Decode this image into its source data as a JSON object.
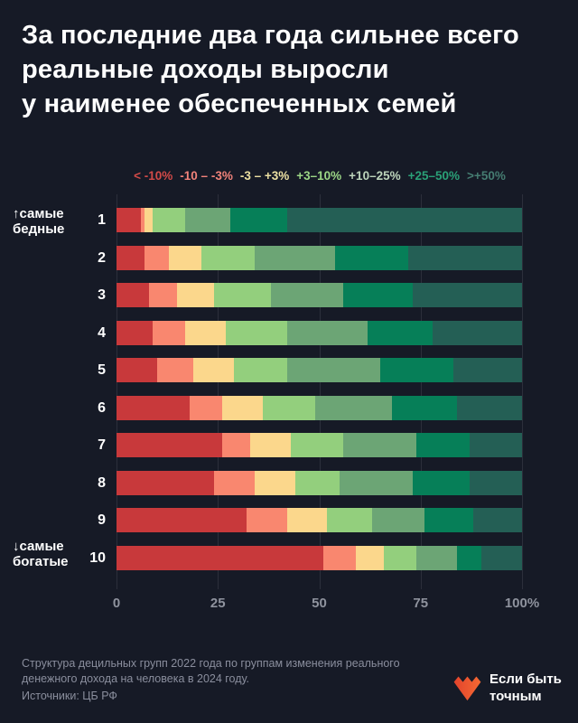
{
  "page": {
    "background": "#161a26"
  },
  "title": {
    "lines": [
      "За последние два года сильнее всего",
      "реальные доходы выросли",
      "у наименее обеспеченных семей"
    ]
  },
  "chart_data": {
    "type": "bar",
    "stacked": true,
    "orientation": "horizontal",
    "title": "За последние два года сильнее всего реальные доходы выросли у наименее обеспеченных семей",
    "categories": [
      "1",
      "2",
      "3",
      "4",
      "5",
      "6",
      "7",
      "8",
      "9",
      "10"
    ],
    "series": [
      {
        "name": "< -10%",
        "color": "#c8393b",
        "legend_text_color": "#d24a48",
        "values": [
          6,
          7,
          8,
          9,
          10,
          18,
          26,
          24,
          32,
          51
        ]
      },
      {
        "name": "-10 – -3%",
        "color": "#f9876f",
        "legend_text_color": "#f2837a",
        "values": [
          1,
          6,
          7,
          8,
          9,
          8,
          7,
          10,
          10,
          8
        ]
      },
      {
        "name": "-3 – +3%",
        "color": "#fbd78c",
        "legend_text_color": "#ece0a2",
        "values": [
          2,
          8,
          9,
          10,
          10,
          10,
          10,
          10,
          10,
          7
        ]
      },
      {
        "name": "+3–10%",
        "color": "#93cf7d",
        "legend_text_color": "#9cd786",
        "values": [
          8,
          13,
          14,
          15,
          13,
          13,
          13,
          11,
          11,
          8
        ]
      },
      {
        "name": "+10–25%",
        "color": "#6ca575",
        "legend_text_color": "#bdd4bb",
        "values": [
          11,
          20,
          18,
          20,
          23,
          19,
          18,
          18,
          13,
          10
        ]
      },
      {
        "name": "+25–50%",
        "color": "#067f58",
        "legend_text_color": "#2aa077",
        "values": [
          14,
          18,
          17,
          16,
          18,
          16,
          13,
          14,
          12,
          6
        ]
      },
      {
        "name": ">+50%",
        "color": "#245f55",
        "legend_text_color": "#457c71",
        "values": [
          58,
          28,
          27,
          22,
          17,
          16,
          13,
          13,
          12,
          10
        ]
      }
    ],
    "axis": {
      "ticks": [
        {
          "label": "0",
          "value": 0
        },
        {
          "label": "25",
          "value": 25
        },
        {
          "label": "50",
          "value": 50
        },
        {
          "label": "75",
          "value": 75
        },
        {
          "label": "100%",
          "value": 100
        }
      ],
      "xlim": [
        0,
        100
      ]
    },
    "legend_position": "top",
    "grid": true
  },
  "group_labels": {
    "top": {
      "line1": "↑самые",
      "line2": "бедные"
    },
    "bottom": {
      "line1": "↓самые",
      "line2": "богатые"
    }
  },
  "footer": {
    "note_line1": "Структура децильных групп 2022 года по группам изменения реального",
    "note_line2": "денежного дохода на человека в 2024 году.",
    "source": "Источники: ЦБ РФ",
    "logo": {
      "line1": "Если быть",
      "line2": "точным",
      "icon": "heart-zigzag-icon",
      "icon_color": "#f1572f",
      "icon_color_dark": "#e2432c"
    }
  }
}
